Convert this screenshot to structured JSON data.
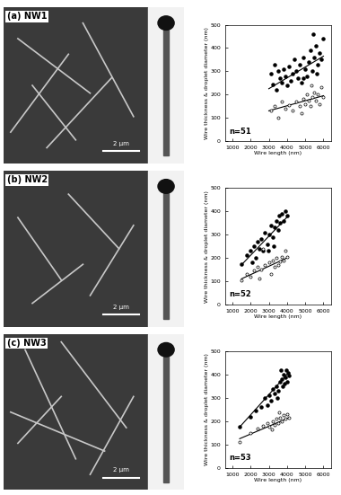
{
  "chart_data": [
    {
      "type": "scatter",
      "title": "(a) NW1",
      "annotations": [
        "n=51",
        "2 µm"
      ],
      "x_label": "Wire length (nm)",
      "y_label": "Wire thickness & droplet diameter (nm)",
      "xlim": [
        600,
        6400
      ],
      "xticks": [
        1000,
        2000,
        3000,
        4000,
        5000,
        6000
      ],
      "ylim": [
        0,
        500
      ],
      "yticks": [
        0,
        100,
        200,
        300,
        400,
        500
      ],
      "grid": false,
      "series": [
        {
          "type": "scatter",
          "marker": "filled_circle",
          "color": "#000000",
          "x": [
            3100,
            3200,
            3300,
            3400,
            3500,
            3600,
            3700,
            3800,
            3900,
            4000,
            4100,
            4200,
            4300,
            4400,
            4500,
            4600,
            4700,
            4800,
            4900,
            5000,
            5100,
            5200,
            5300,
            5400,
            5500,
            5600,
            5700,
            5800,
            5900,
            6000,
            5450,
            4900,
            5650
          ],
          "values": [
            290,
            245,
            330,
            220,
            300,
            270,
            250,
            310,
            280,
            240,
            320,
            260,
            290,
            350,
            300,
            270,
            330,
            250,
            360,
            310,
            280,
            340,
            390,
            300,
            360,
            410,
            330,
            380,
            350,
            440,
            460,
            270,
            290
          ]
        },
        {
          "type": "scatter",
          "marker": "open_circle",
          "color": "#000000",
          "x": [
            3100,
            3300,
            3500,
            3700,
            3900,
            4100,
            4300,
            4500,
            4700,
            4900,
            5000,
            5100,
            5200,
            5300,
            5400,
            5500,
            5600,
            5700,
            5800,
            5900,
            6000,
            4800,
            5350
          ],
          "values": [
            130,
            150,
            100,
            170,
            140,
            155,
            130,
            170,
            150,
            180,
            160,
            200,
            175,
            150,
            190,
            210,
            175,
            200,
            160,
            230,
            190,
            120,
            240
          ]
        },
        {
          "type": "line",
          "color": "#000000",
          "x": [
            3000,
            6000
          ],
          "values": [
            225,
            365
          ]
        },
        {
          "type": "line",
          "color": "#000000",
          "x": [
            3000,
            6000
          ],
          "values": [
            130,
            195
          ]
        }
      ]
    },
    {
      "type": "scatter",
      "title": "(b) NW2",
      "annotations": [
        "n=52",
        "2 µm"
      ],
      "x_label": "Wire length (nm)",
      "y_label": "Wire thickness & droplet diameter (nm)",
      "xlim": [
        600,
        6400
      ],
      "xticks": [
        1000,
        2000,
        3000,
        4000,
        5000,
        6000
      ],
      "ylim": [
        0,
        500
      ],
      "yticks": [
        0,
        100,
        200,
        300,
        400,
        500
      ],
      "grid": false,
      "series": [
        {
          "type": "scatter",
          "marker": "filled_circle",
          "color": "#000000",
          "x": [
            1500,
            1800,
            2000,
            2100,
            2200,
            2300,
            2400,
            2500,
            2600,
            2700,
            2800,
            2900,
            3000,
            3100,
            3200,
            3300,
            3400,
            3500,
            3600,
            3700,
            3800,
            3900,
            4000,
            3550,
            2950,
            3250
          ],
          "values": [
            175,
            210,
            230,
            180,
            250,
            200,
            270,
            240,
            280,
            230,
            310,
            260,
            300,
            340,
            290,
            330,
            360,
            320,
            350,
            390,
            360,
            400,
            380,
            380,
            230,
            250
          ]
        },
        {
          "type": "scatter",
          "marker": "open_circle",
          "color": "#000000",
          "x": [
            1500,
            1800,
            2000,
            2200,
            2400,
            2500,
            2600,
            2800,
            3000,
            3100,
            3200,
            3300,
            3400,
            3500,
            3600,
            3700,
            3800,
            3900,
            4000,
            2700
          ],
          "values": [
            105,
            130,
            120,
            145,
            160,
            110,
            150,
            170,
            180,
            130,
            190,
            160,
            200,
            170,
            185,
            205,
            190,
            230,
            205,
            240
          ]
        },
        {
          "type": "line",
          "color": "#000000",
          "x": [
            1500,
            4000
          ],
          "values": [
            170,
            375
          ]
        },
        {
          "type": "line",
          "color": "#000000",
          "x": [
            1500,
            4000
          ],
          "values": [
            110,
            200
          ]
        }
      ]
    },
    {
      "type": "scatter",
      "title": "(c) NW3",
      "annotations": [
        "n=53",
        "2 µm"
      ],
      "x_label": "Wire length (nm)",
      "y_label": "Wire thickness & droplet diameter (nm)",
      "xlim": [
        600,
        6400
      ],
      "xticks": [
        1000,
        2000,
        3000,
        4000,
        5000,
        6000
      ],
      "ylim": [
        0,
        500
      ],
      "yticks": [
        0,
        100,
        200,
        300,
        400,
        500
      ],
      "grid": false,
      "series": [
        {
          "type": "scatter",
          "marker": "filled_circle",
          "color": "#000000",
          "x": [
            1400,
            2000,
            2300,
            2600,
            2800,
            2900,
            3000,
            3100,
            3200,
            3300,
            3400,
            3500,
            3600,
            3700,
            3750,
            3800,
            3900,
            3950,
            4000,
            4050,
            4100,
            3650,
            3450,
            3850
          ],
          "values": [
            175,
            220,
            245,
            260,
            300,
            270,
            310,
            290,
            340,
            320,
            350,
            330,
            370,
            380,
            350,
            400,
            390,
            420,
            370,
            410,
            395,
            420,
            300,
            360
          ]
        },
        {
          "type": "scatter",
          "marker": "open_circle",
          "color": "#000000",
          "x": [
            1400,
            2000,
            2400,
            2700,
            2900,
            3000,
            3200,
            3300,
            3400,
            3500,
            3600,
            3700,
            3800,
            3900,
            4000,
            4100,
            3550,
            3150
          ],
          "values": [
            110,
            150,
            170,
            180,
            190,
            175,
            200,
            185,
            210,
            190,
            215,
            200,
            225,
            210,
            230,
            215,
            240,
            165
          ]
        },
        {
          "type": "line",
          "color": "#000000",
          "x": [
            1400,
            4100
          ],
          "values": [
            175,
            410
          ]
        },
        {
          "type": "line",
          "color": "#000000",
          "x": [
            1400,
            4100
          ],
          "values": [
            125,
            215
          ]
        }
      ]
    }
  ]
}
